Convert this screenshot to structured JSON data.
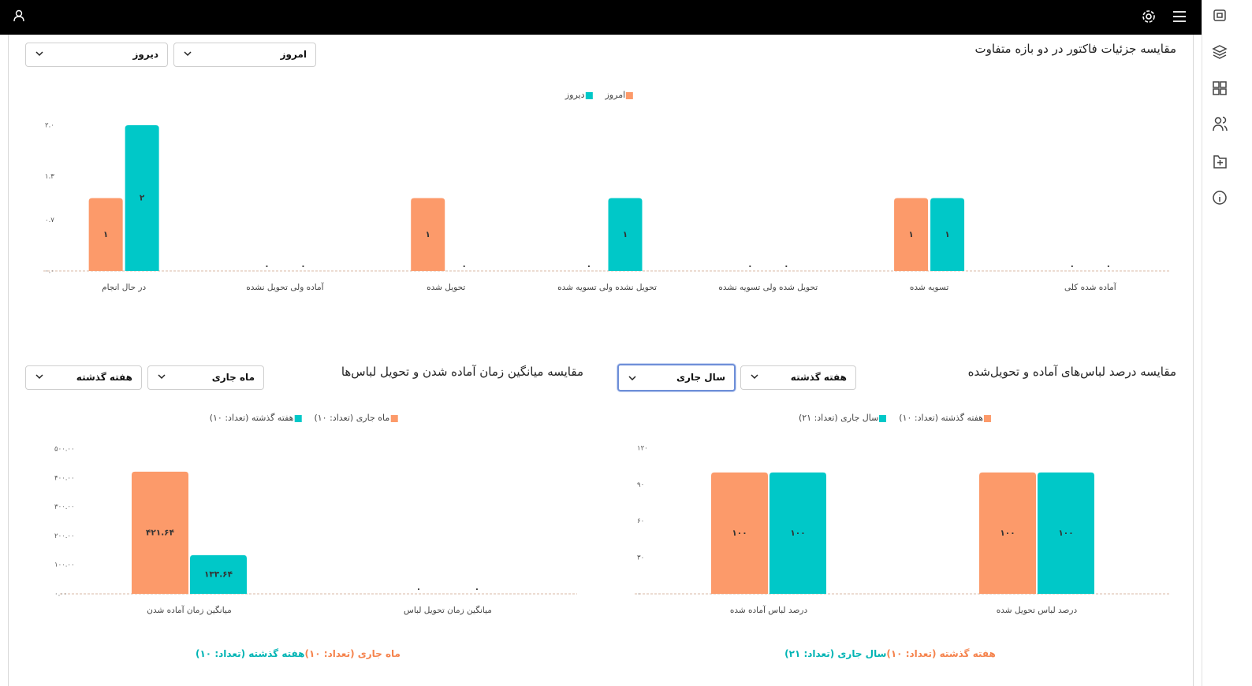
{
  "chart_data": [
    {
      "type": "bar",
      "title": "مقایسه جزئیات فاکتور در دو بازه متفاوت",
      "filters": [
        "امروز",
        "دیروز"
      ],
      "categories": [
        "در حال انجام",
        "آماده ولی تحویل نشده",
        "تحویل شده",
        "تحویل نشده ولی تسویه شده",
        "تحویل شده ولی تسویه نشده",
        "تسویه شده",
        "آماده شده کلی"
      ],
      "series": [
        {
          "name": "امروز",
          "color": "#fc9a6a",
          "values": [
            1,
            0,
            1,
            0,
            0,
            1,
            0
          ],
          "value_labels": [
            "۱",
            "۰",
            "۱",
            "۰",
            "۰",
            "۱",
            "۰"
          ]
        },
        {
          "name": "دیروز",
          "color": "#00c8c8",
          "values": [
            2,
            0,
            0,
            1,
            0,
            1,
            0
          ],
          "value_labels": [
            "۲",
            "۰",
            "۰",
            "۱",
            "۰",
            "۱",
            "۰"
          ]
        }
      ],
      "ylim": [
        0,
        2
      ],
      "yticks": [
        {
          "value": 0,
          "label": "۰.۰"
        },
        {
          "value": 0.7,
          "label": "۰.۷"
        },
        {
          "value": 1.3,
          "label": "۱.۳"
        },
        {
          "value": 2,
          "label": "۲.۰"
        }
      ]
    },
    {
      "type": "bar",
      "title": "مقایسه درصد لباس‌های آماده و تحویل‌شده",
      "filters": [
        "هفته گذشته",
        "سال جاری"
      ],
      "categories": [
        "درصد لباس آماده شده",
        "درصد لباس تحویل شده"
      ],
      "series": [
        {
          "name": "هفته گذشته (تعداد: ۱۰)",
          "color": "#fc9a6a",
          "values": [
            100,
            100
          ],
          "value_labels": [
            "۱۰۰",
            "۱۰۰"
          ]
        },
        {
          "name": "سال جاری (تعداد: ۲۱)",
          "color": "#00c8c8",
          "values": [
            100,
            100
          ],
          "value_labels": [
            "۱۰۰",
            "۱۰۰"
          ]
        }
      ],
      "ylim": [
        0,
        120
      ],
      "yticks": [
        {
          "value": 0,
          "label": "۰"
        },
        {
          "value": 30,
          "label": "۳۰"
        },
        {
          "value": 60,
          "label": "۶۰"
        },
        {
          "value": 90,
          "label": "۹۰"
        },
        {
          "value": 120,
          "label": "۱۲۰"
        }
      ]
    },
    {
      "type": "bar",
      "title": "مقایسه میانگین زمان آماده شدن و تحویل لباس‌ها",
      "filters": [
        "ماه جاری",
        "هفته گذشته"
      ],
      "categories": [
        "میانگین زمان آماده شدن",
        "میانگین زمان تحویل لباس"
      ],
      "series": [
        {
          "name": "ماه جاری (تعداد: ۱۰)",
          "color": "#fc9a6a",
          "values": [
            421.64,
            0
          ],
          "value_labels": [
            "۴۲۱.۶۴",
            "۰"
          ]
        },
        {
          "name": "هفته گذشته (تعداد: ۱۰)",
          "color": "#00c8c8",
          "values": [
            133.64,
            0
          ],
          "value_labels": [
            "۱۳۳.۶۴",
            "۰"
          ]
        }
      ],
      "ylim": [
        0,
        500
      ],
      "yticks": [
        {
          "value": 0,
          "label": "۰.۰۰"
        },
        {
          "value": 100,
          "label": "۱۰۰.۰۰"
        },
        {
          "value": 200,
          "label": "۲۰۰.۰۰"
        },
        {
          "value": 300,
          "label": "۳۰۰.۰۰"
        },
        {
          "value": 400,
          "label": "۴۰۰.۰۰"
        },
        {
          "value": 500,
          "label": "۵۰۰.۰۰"
        }
      ]
    }
  ]
}
